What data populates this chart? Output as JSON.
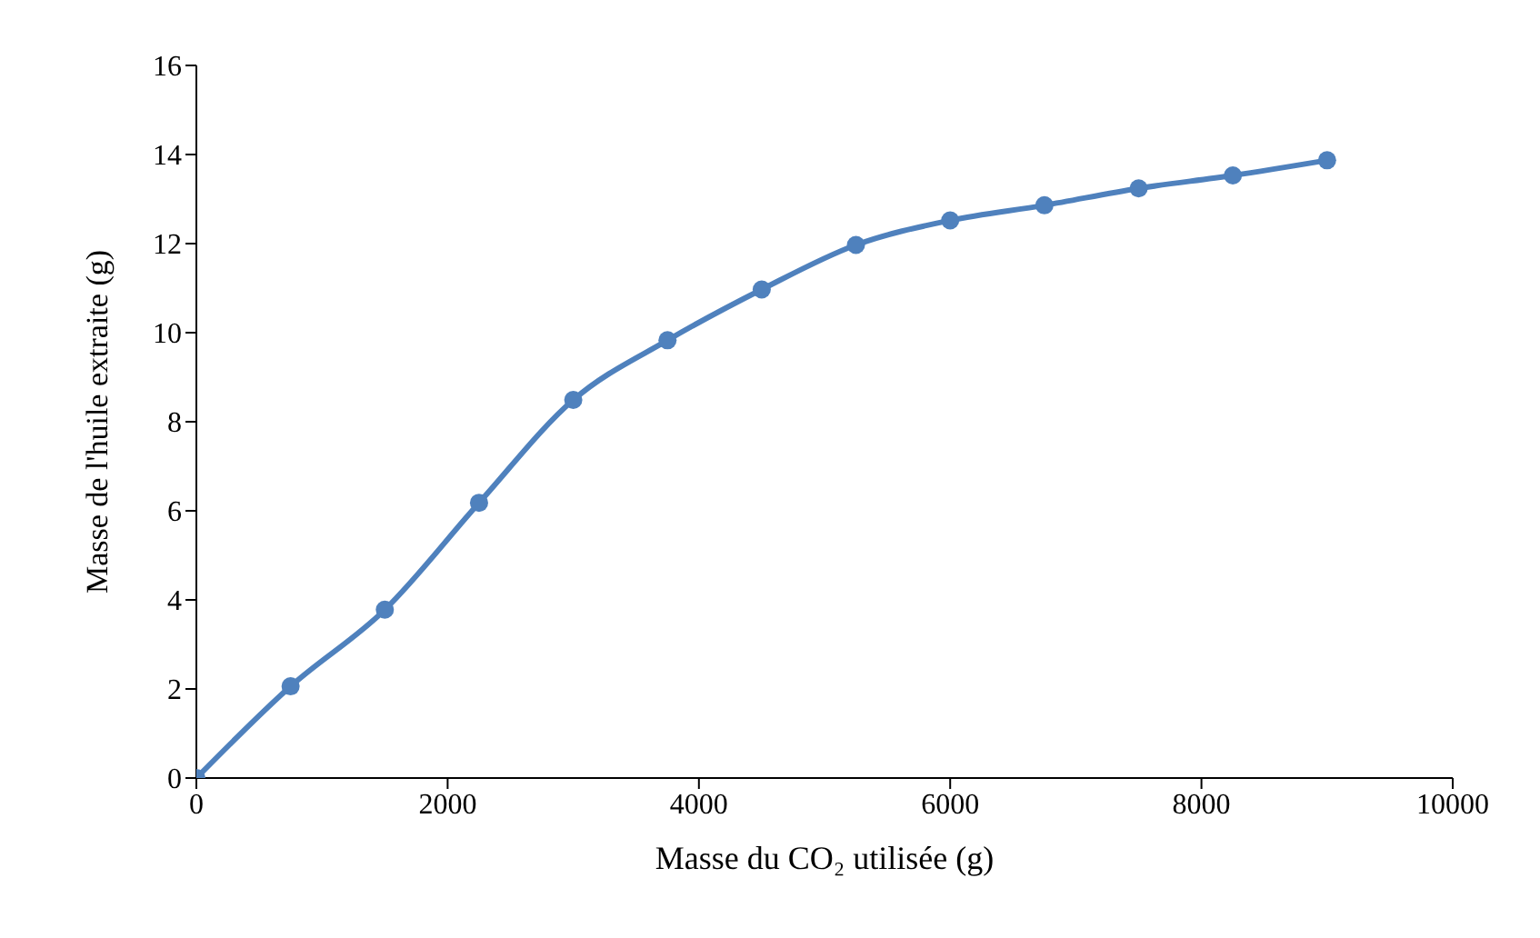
{
  "chart_data": {
    "type": "line",
    "xlabel": "Masse du CO₂ utilisée (g)",
    "ylabel": "Masse de l'huile  extraite  (g)",
    "x": [
      0,
      750,
      1500,
      2250,
      3000,
      3750,
      4500,
      5250,
      6000,
      6750,
      7500,
      8250,
      9000
    ],
    "series": [
      {
        "color": "#4f81bd",
        "values": [
          0,
          2.06,
          3.78,
          6.18,
          8.49,
          9.83,
          10.97,
          11.97,
          12.52,
          12.86,
          13.24,
          13.53,
          13.87
        ]
      }
    ],
    "xlim": [
      0,
      10000
    ],
    "xticks": [
      0,
      2000,
      4000,
      6000,
      8000,
      10000
    ],
    "ylim": [
      0,
      16
    ],
    "yticks": [
      0,
      2,
      4,
      6,
      8,
      10,
      12,
      14,
      16
    ],
    "marker": "circle",
    "line_style": "solid",
    "grid": false,
    "legend": false
  }
}
